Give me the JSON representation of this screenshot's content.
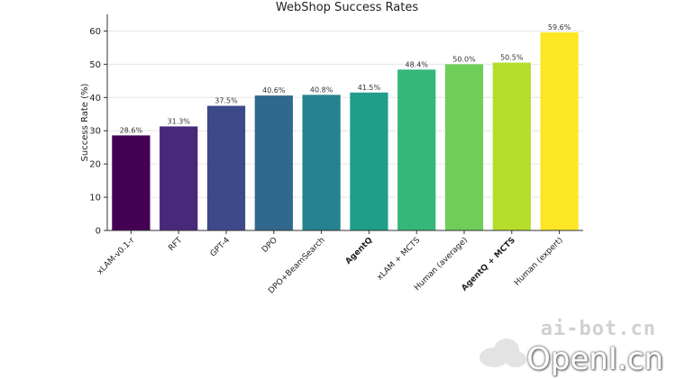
{
  "chart_data": {
    "type": "bar",
    "title": "WebShop Success Rates",
    "xlabel": "",
    "ylabel": "Success Rate (%)",
    "ylim": [
      0,
      65
    ],
    "yticks": [
      0,
      10,
      20,
      30,
      40,
      50,
      60
    ],
    "grid": true,
    "categories": [
      "xLAM-v0.1-r",
      "RFT",
      "GPT-4",
      "DPO",
      "DPO+BeamSearch",
      "AgentQ",
      "xLAM + MCTS",
      "Human (average)",
      "AgentQ + MCTS",
      "Human (expert)"
    ],
    "bold_categories": [
      "AgentQ",
      "AgentQ + MCTS"
    ],
    "values": [
      28.6,
      31.3,
      37.5,
      40.6,
      40.8,
      41.5,
      48.4,
      50.0,
      50.5,
      59.6
    ],
    "value_labels": [
      "28.6%",
      "31.3%",
      "37.5%",
      "40.6%",
      "40.8%",
      "41.5%",
      "48.4%",
      "50.0%",
      "50.5%",
      "59.6%"
    ],
    "colors": [
      "#440154",
      "#482878",
      "#3e4989",
      "#31688e",
      "#26828e",
      "#1f9e89",
      "#35b779",
      "#6ece58",
      "#b5de2b",
      "#fde725"
    ]
  },
  "watermark": {
    "top_text": "ai-bot.cn",
    "bottom_text": "OpenI.cn",
    "icon": "cloud-logo-icon"
  }
}
